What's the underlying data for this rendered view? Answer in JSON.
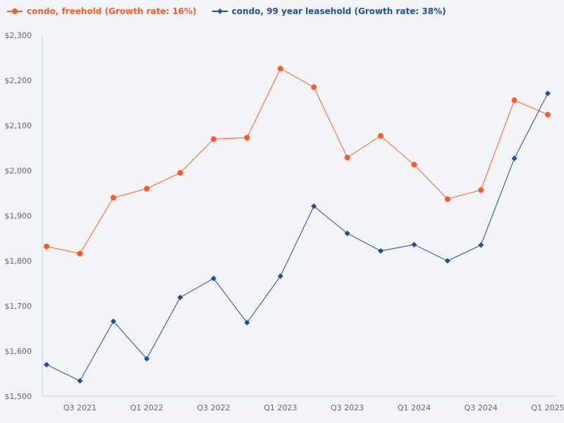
{
  "chart_data": {
    "type": "line",
    "title": "",
    "xlabel": "",
    "ylabel": "",
    "ylim": [
      1500,
      2300
    ],
    "y_ticks": [
      "$1,500",
      "$1,600",
      "$1,700",
      "$1,800",
      "$1,900",
      "$2,000",
      "$2,100",
      "$2,200",
      "$2,300"
    ],
    "y_tick_values": [
      1500,
      1600,
      1700,
      1800,
      1900,
      2000,
      2100,
      2200,
      2300
    ],
    "categories": [
      "Q2 2021",
      "Q3 2021",
      "Q4 2021",
      "Q1 2022",
      "Q2 2022",
      "Q3 2022",
      "Q4 2022",
      "Q1 2023",
      "Q2 2023",
      "Q3 2023",
      "Q4 2023",
      "Q1 2024",
      "Q2 2024",
      "Q3 2024",
      "Q4 2024",
      "Q1 2025"
    ],
    "x_tick_labels": [
      "Q3 2021",
      "Q1 2022",
      "Q3 2022",
      "Q1 2023",
      "Q3 2023",
      "Q1 2024",
      "Q3 2024",
      "Q1 2025"
    ],
    "grid": false,
    "legend_placement": "top-left",
    "series": [
      {
        "name": "condo, freehold (Growth rate: 16%)",
        "color": "#ff5a26",
        "marker": "circle",
        "values": [
          1832,
          1816,
          1940,
          1960,
          1995,
          2070,
          2073,
          2226,
          2185,
          2029,
          2077,
          2013,
          1937,
          1957,
          2156,
          2124
        ]
      },
      {
        "name": "condo, 99 year leasehold (Growth rate: 38%)",
        "color": "#1f4e9e",
        "marker": "diamond",
        "values": [
          1570,
          1534,
          1666,
          1583,
          1719,
          1761,
          1663,
          1766,
          1921,
          1861,
          1822,
          1836,
          1800,
          1835,
          2027,
          2171
        ]
      }
    ]
  }
}
